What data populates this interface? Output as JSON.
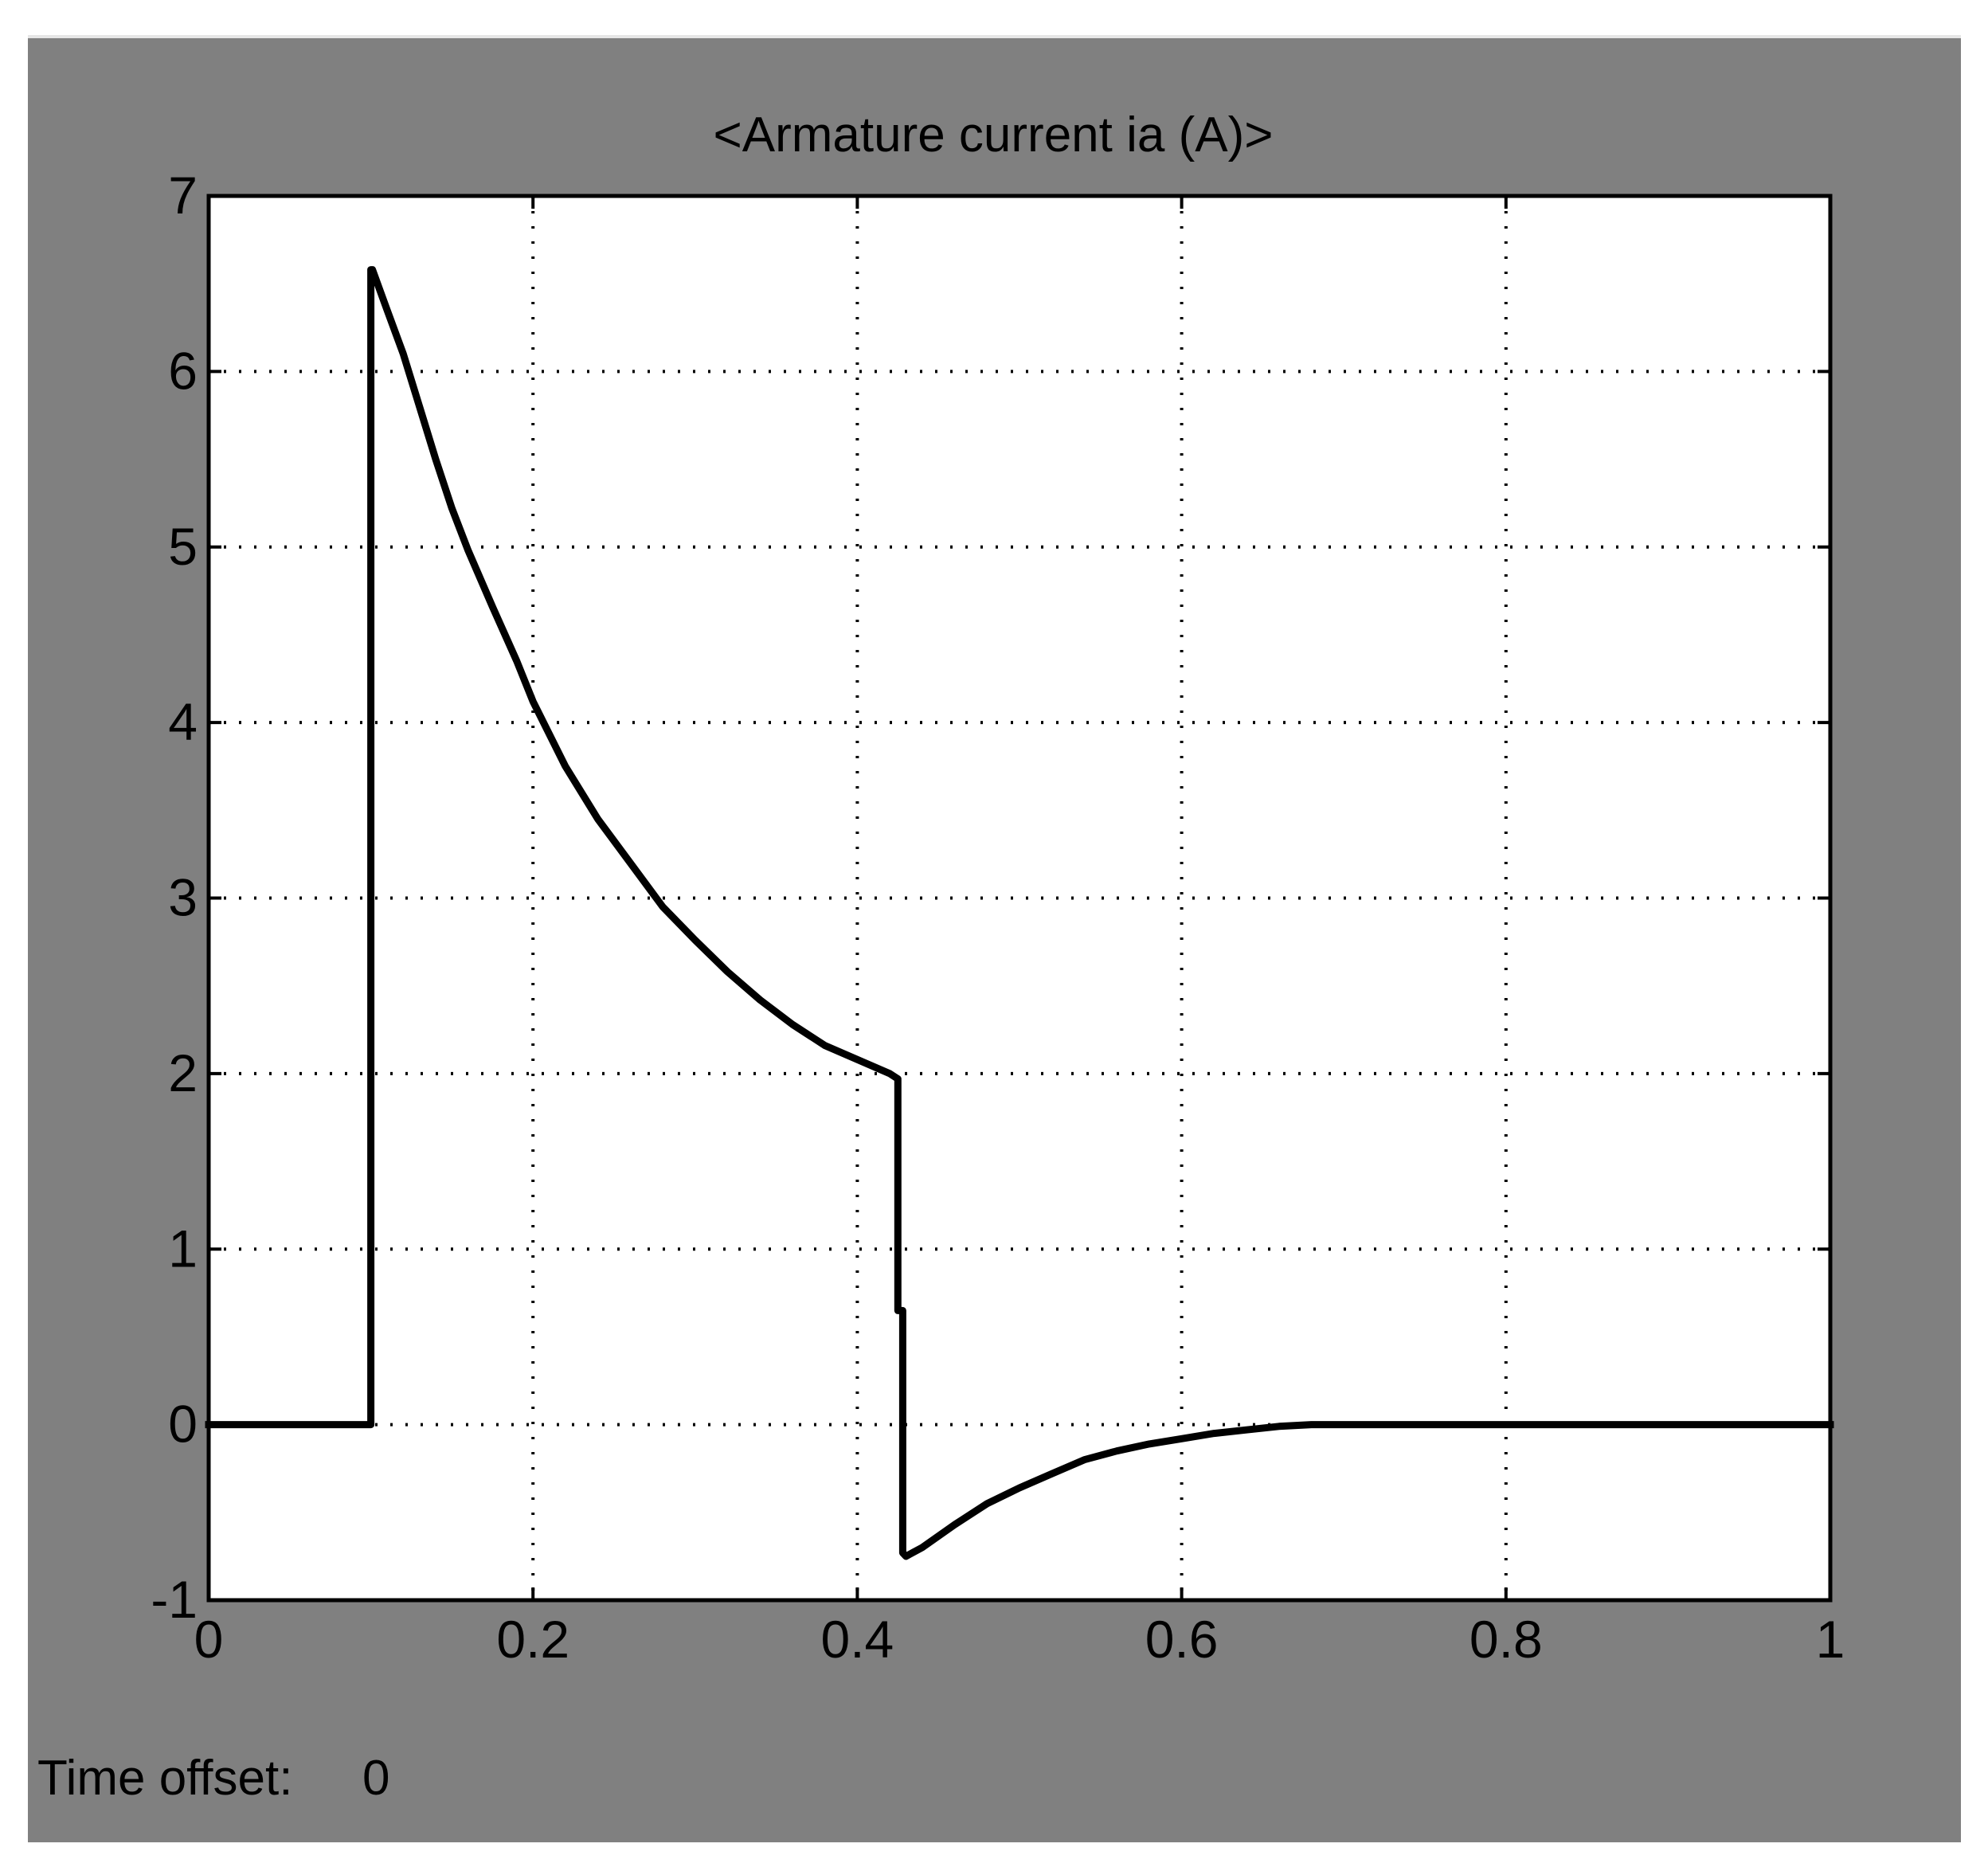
{
  "window": {
    "background_color": "#808080",
    "plot_background_color": "#ffffff",
    "line_color": "#000000"
  },
  "footer": {
    "time_offset_label": "Time offset:",
    "time_offset_value": "0"
  },
  "chart_data": {
    "type": "line",
    "title": "<Armature current ia (A)>",
    "xlabel": "",
    "ylabel": "",
    "xlim": [
      0,
      1
    ],
    "ylim": [
      -1,
      7
    ],
    "grid": true,
    "x_ticks": [
      0,
      0.2,
      0.4,
      0.6,
      0.8,
      1
    ],
    "x_tick_labels": [
      "0",
      "0.2",
      "0.4",
      "0.6",
      "0.8",
      "1"
    ],
    "y_ticks": [
      -1,
      0,
      1,
      2,
      3,
      4,
      5,
      6,
      7
    ],
    "y_tick_labels": [
      "-1",
      "0",
      "1",
      "2",
      "3",
      "4",
      "5",
      "6",
      "7"
    ],
    "series": [
      {
        "x": [
          0,
          0.1,
          0.1,
          0.101,
          0.11,
          0.12,
          0.13,
          0.14,
          0.15,
          0.16,
          0.175,
          0.19,
          0.2,
          0.22,
          0.24,
          0.26,
          0.28,
          0.3,
          0.32,
          0.34,
          0.36,
          0.38,
          0.4,
          0.42,
          0.425,
          0.425,
          0.428,
          0.428,
          0.43,
          0.44,
          0.46,
          0.48,
          0.5,
          0.52,
          0.54,
          0.56,
          0.58,
          0.6,
          0.62,
          0.64,
          0.66,
          0.68,
          0.7,
          0.8,
          0.9,
          1.0
        ],
        "y": [
          0,
          0,
          6.58,
          6.58,
          6.35,
          6.1,
          5.8,
          5.5,
          5.22,
          4.98,
          4.66,
          4.35,
          4.12,
          3.75,
          3.45,
          3.2,
          2.95,
          2.76,
          2.58,
          2.42,
          2.28,
          2.16,
          2.08,
          2.0,
          1.97,
          0.65,
          0.65,
          -0.73,
          -0.75,
          -0.7,
          -0.57,
          -0.45,
          -0.36,
          -0.28,
          -0.2,
          -0.15,
          -0.11,
          -0.08,
          -0.05,
          -0.03,
          -0.01,
          0.0,
          0,
          0,
          0,
          0
        ]
      }
    ]
  }
}
